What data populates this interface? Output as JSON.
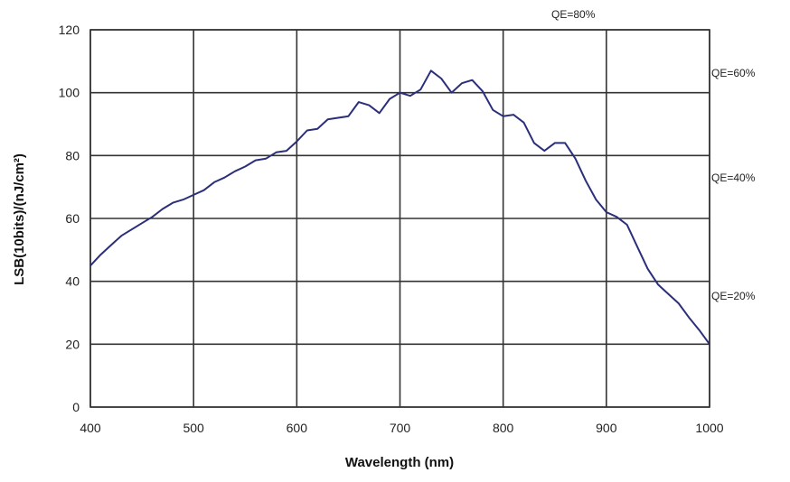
{
  "chart_data": {
    "type": "line",
    "xlabel": "Wavelength (nm)",
    "ylabel": "LSB(10bits)/(nJ/cm²)",
    "xlim": [
      400,
      1000
    ],
    "ylim": [
      0,
      120
    ],
    "x_ticks": [
      400,
      500,
      600,
      700,
      800,
      900,
      1000
    ],
    "y_ticks": [
      0,
      20,
      40,
      60,
      80,
      100,
      120
    ],
    "x_tick_labels": [
      "400",
      "500",
      "600",
      "700",
      "800",
      "900",
      "1000"
    ],
    "y_tick_labels": [
      "0",
      "20",
      "40",
      "60",
      "80",
      "100",
      "120"
    ],
    "grid": true,
    "color": "#2b2f7a",
    "series": [
      {
        "x": [
          400,
          410,
          420,
          430,
          440,
          450,
          460,
          470,
          480,
          490,
          500,
          510,
          520,
          530,
          540,
          550,
          560,
          570,
          580,
          590,
          600,
          610,
          620,
          630,
          640,
          650,
          660,
          670,
          680,
          690,
          700,
          710,
          720,
          730,
          740,
          750,
          760,
          770,
          780,
          790,
          800,
          810,
          820,
          830,
          840,
          850,
          860,
          870,
          880,
          890,
          900,
          910,
          920,
          930,
          940,
          950,
          960,
          970,
          980,
          990,
          1000
        ],
        "y": [
          45,
          48.5,
          51.5,
          54.5,
          56.5,
          58.5,
          60.5,
          63,
          65,
          66,
          67.5,
          69,
          71.5,
          73,
          75,
          76.5,
          78.5,
          79,
          81,
          81.5,
          84.5,
          88,
          88.5,
          91.5,
          92,
          92.5,
          97,
          96,
          93.5,
          98,
          100,
          99,
          101,
          107,
          104.5,
          100,
          103,
          104,
          100.5,
          94.5,
          92.5,
          93,
          90.5,
          84,
          81.5,
          84,
          84,
          79,
          72,
          66,
          62,
          60.5,
          58,
          51,
          44,
          39,
          36,
          33,
          28.5,
          24.5,
          20
        ]
      }
    ],
    "annotations": [
      "QE=80%",
      "QE=60%",
      "QE=40%",
      "QE=20%"
    ]
  }
}
